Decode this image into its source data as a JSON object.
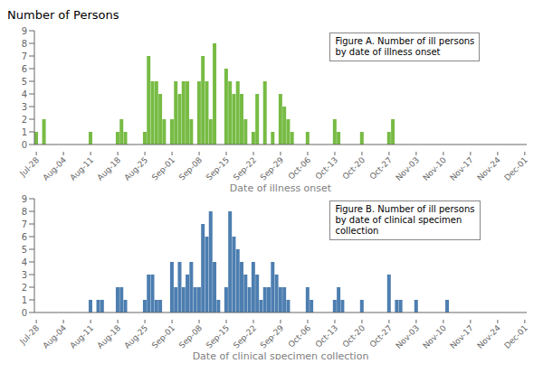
{
  "chart_data": [
    {
      "type": "bar",
      "title": "Number of Persons",
      "xlabel": "Date of illness onset",
      "annotation": "Figure A. Number of ill persons\nby date of illness onset",
      "color": "#77bb44",
      "ylim": [
        0,
        9
      ],
      "yticks": [
        0,
        1,
        2,
        3,
        4,
        5,
        6,
        7,
        8,
        9
      ],
      "grid": false,
      "categories": [
        "Jul-28",
        null,
        null,
        null,
        null,
        null,
        null,
        "Aug-04",
        null,
        null,
        null,
        null,
        null,
        null,
        "Aug-11",
        null,
        null,
        null,
        null,
        null,
        null,
        "Aug-18",
        null,
        null,
        null,
        null,
        null,
        null,
        "Aug-25",
        null,
        null,
        null,
        null,
        null,
        null,
        "Sep-01",
        null,
        null,
        null,
        null,
        null,
        null,
        "Sep-08",
        null,
        null,
        null,
        null,
        null,
        null,
        "Sep-15",
        null,
        null,
        null,
        null,
        null,
        null,
        "Sep-22",
        null,
        null,
        null,
        null,
        null,
        null,
        "Sep-29",
        null,
        null,
        null,
        null,
        null,
        null,
        "Oct-06",
        null,
        null,
        null,
        null,
        null,
        null,
        "Oct-13",
        null,
        null,
        null,
        null,
        null,
        null,
        "Oct-20",
        null,
        null,
        null,
        null,
        null,
        null,
        "Oct-27",
        null,
        null,
        null,
        null,
        null,
        null,
        "Nov-03",
        null,
        null,
        null,
        null,
        null,
        null,
        "Nov-10",
        null,
        null,
        null,
        null,
        null,
        null,
        "Nov-17",
        null,
        null,
        null,
        null,
        null,
        null,
        "Nov-24",
        null,
        null,
        null,
        null,
        null,
        null,
        "Dec-01"
      ],
      "values": [
        1,
        0,
        2,
        0,
        0,
        0,
        0,
        0,
        0,
        0,
        0,
        0,
        0,
        0,
        1,
        0,
        0,
        0,
        0,
        0,
        0,
        1,
        2,
        1,
        0,
        0,
        0,
        0,
        1,
        7,
        5,
        5,
        4,
        2,
        0,
        2,
        5,
        4,
        5,
        5,
        2,
        0,
        5,
        7,
        5,
        2,
        8,
        0,
        0,
        6,
        5,
        4,
        5,
        4,
        2,
        0,
        1,
        4,
        0,
        5,
        0,
        1,
        0,
        4,
        3,
        2,
        1,
        0,
        0,
        0,
        1,
        0,
        0,
        0,
        0,
        0,
        0,
        2,
        1,
        0,
        0,
        0,
        0,
        0,
        1,
        0,
        0,
        0,
        0,
        0,
        0,
        1,
        2,
        0,
        0,
        0,
        0,
        0,
        0,
        0,
        0,
        0,
        0,
        0,
        0,
        0,
        0,
        0,
        0,
        0,
        0,
        0,
        0,
        0,
        0,
        0,
        0,
        0,
        0,
        0,
        0,
        0,
        0,
        0,
        0,
        0,
        0
      ]
    },
    {
      "type": "bar",
      "xlabel": "Date of clinical specimen collection",
      "annotation": "Figure B. Number of ill persons\nby date of clinical specimen\ncollection",
      "color": "#4d7eb0",
      "ylim": [
        0,
        9
      ],
      "yticks": [
        0,
        1,
        2,
        3,
        4,
        5,
        6,
        7,
        8,
        9
      ],
      "grid": false,
      "categories": [
        "Jul-28",
        null,
        null,
        null,
        null,
        null,
        null,
        "Aug-04",
        null,
        null,
        null,
        null,
        null,
        null,
        "Aug-11",
        null,
        null,
        null,
        null,
        null,
        null,
        "Aug-18",
        null,
        null,
        null,
        null,
        null,
        null,
        "Aug-25",
        null,
        null,
        null,
        null,
        null,
        null,
        "Sep-01",
        null,
        null,
        null,
        null,
        null,
        null,
        "Sep-08",
        null,
        null,
        null,
        null,
        null,
        null,
        "Sep-15",
        null,
        null,
        null,
        null,
        null,
        null,
        "Sep-22",
        null,
        null,
        null,
        null,
        null,
        null,
        "Sep-29",
        null,
        null,
        null,
        null,
        null,
        null,
        "Oct-06",
        null,
        null,
        null,
        null,
        null,
        null,
        "Oct-13",
        null,
        null,
        null,
        null,
        null,
        null,
        "Oct-20",
        null,
        null,
        null,
        null,
        null,
        null,
        "Oct-27",
        null,
        null,
        null,
        null,
        null,
        null,
        "Nov-03",
        null,
        null,
        null,
        null,
        null,
        null,
        "Nov-10",
        null,
        null,
        null,
        null,
        null,
        null,
        "Nov-17",
        null,
        null,
        null,
        null,
        null,
        null,
        "Nov-24",
        null,
        null,
        null,
        null,
        null,
        null,
        "Dec-01"
      ],
      "values": [
        0,
        0,
        0,
        0,
        0,
        0,
        0,
        0,
        0,
        0,
        0,
        0,
        0,
        0,
        1,
        0,
        1,
        1,
        0,
        0,
        0,
        2,
        2,
        1,
        0,
        0,
        0,
        0,
        1,
        3,
        3,
        1,
        1,
        0,
        0,
        4,
        2,
        4,
        2,
        3,
        4,
        2,
        2,
        7,
        6,
        8,
        4,
        1,
        0,
        2,
        8,
        6,
        5,
        4,
        3,
        2,
        4,
        3,
        1,
        2,
        2,
        4,
        3,
        2,
        2,
        1,
        0,
        0,
        0,
        0,
        2,
        1,
        0,
        0,
        0,
        0,
        0,
        1,
        2,
        1,
        0,
        0,
        0,
        0,
        1,
        0,
        0,
        0,
        0,
        0,
        0,
        3,
        0,
        1,
        1,
        0,
        0,
        0,
        1,
        0,
        0,
        0,
        0,
        0,
        0,
        0,
        1,
        0,
        0,
        0,
        0,
        0,
        0,
        0,
        0,
        0,
        0,
        0,
        0,
        0,
        0,
        0,
        0,
        0,
        0,
        0,
        0
      ]
    }
  ]
}
